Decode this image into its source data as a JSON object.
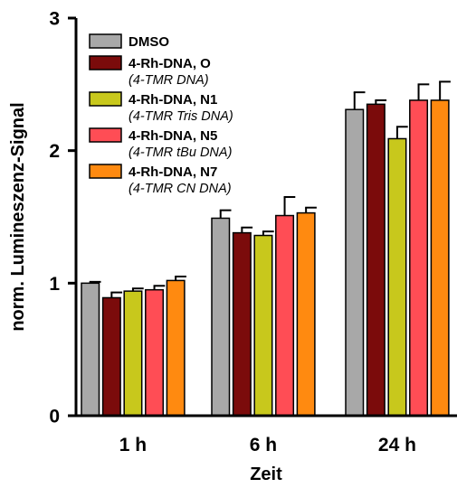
{
  "chart_data": {
    "type": "bar",
    "xlabel": "Zeit",
    "ylabel": "norm. Lumineszenz-Signal",
    "ylim": [
      0,
      3
    ],
    "yticks": [
      "0",
      "1",
      "2",
      "3"
    ],
    "categories": [
      "1 h",
      "6 h",
      "24 h"
    ],
    "legend_position": "top-left",
    "grid": false,
    "series": [
      {
        "name": "DMSO",
        "subtitle": "",
        "color": "#a8a8a8",
        "values": [
          1.0,
          1.49,
          2.31
        ],
        "errors": [
          0.01,
          0.06,
          0.13
        ]
      },
      {
        "name": "4-Rh-DNA, O",
        "subtitle": "(4-TMR DNA)",
        "color": "#7b0b0b",
        "values": [
          0.89,
          1.38,
          2.35
        ],
        "errors": [
          0.04,
          0.04,
          0.03
        ]
      },
      {
        "name": "4-Rh-DNA, N1",
        "subtitle": "(4-TMR Tris DNA)",
        "color": "#c8c81c",
        "values": [
          0.94,
          1.36,
          2.09
        ],
        "errors": [
          0.02,
          0.03,
          0.09
        ]
      },
      {
        "name": "4-Rh-DNA, N5",
        "subtitle": "(4-TMR tBu DNA)",
        "color": "#ff4d55",
        "values": [
          0.95,
          1.51,
          2.38
        ],
        "errors": [
          0.03,
          0.14,
          0.12
        ]
      },
      {
        "name": "4-Rh-DNA, N7",
        "subtitle": "(4-TMR CN DNA)",
        "color": "#ff8a10",
        "values": [
          1.02,
          1.53,
          2.38
        ],
        "errors": [
          0.03,
          0.04,
          0.14
        ]
      }
    ]
  }
}
